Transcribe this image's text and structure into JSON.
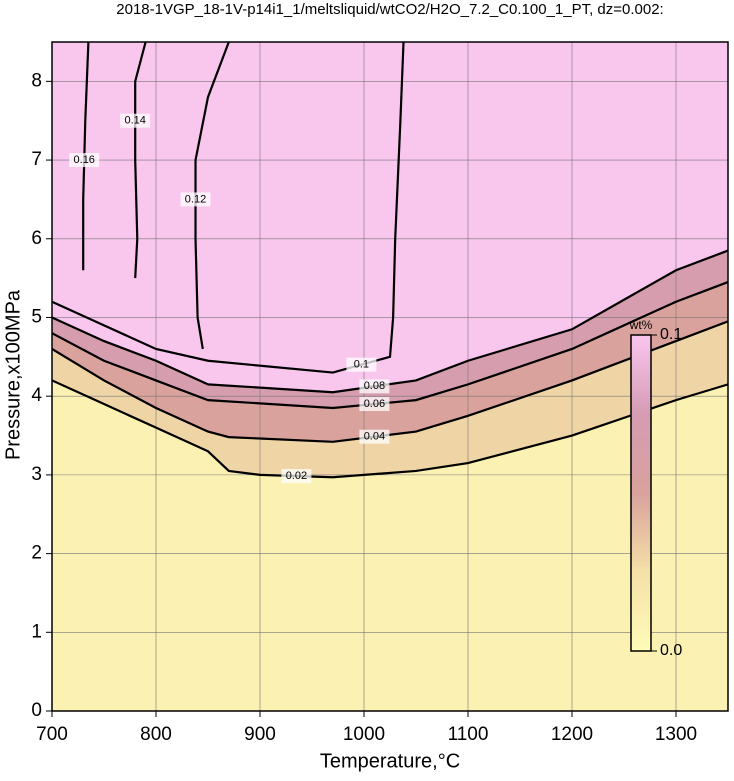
{
  "chart_data": {
    "type": "contour",
    "title": "2018-1VGP_18-1V-p14i1_1/meltsliquid/wtCO2/H2O_7.2_C0.100_1_PT, dz=0.002:",
    "x_label": "Temperature,°C",
    "y_label": "Pressure,x100MPa",
    "xlim": [
      700,
      1350
    ],
    "ylim": [
      0,
      8.5
    ],
    "xticks": [
      700,
      800,
      900,
      1000,
      1100,
      1200,
      1300
    ],
    "yticks": [
      0,
      1,
      2,
      3,
      4,
      5,
      6,
      7,
      8
    ],
    "grid": true,
    "contours": [
      {
        "level": 0.02,
        "x": [
          700,
          750,
          800,
          850,
          870,
          900,
          970,
          1050,
          1100,
          1200,
          1300,
          1350
        ],
        "y": [
          4.2,
          3.9,
          3.6,
          3.3,
          3.05,
          3.0,
          2.97,
          3.05,
          3.15,
          3.5,
          3.95,
          4.15
        ]
      },
      {
        "level": 0.04,
        "x": [
          700,
          750,
          800,
          850,
          870,
          970,
          1050,
          1100,
          1200,
          1300,
          1350
        ],
        "y": [
          4.6,
          4.2,
          3.85,
          3.55,
          3.48,
          3.42,
          3.55,
          3.75,
          4.2,
          4.7,
          4.95
        ]
      },
      {
        "level": 0.06,
        "x": [
          700,
          750,
          800,
          850,
          970,
          1050,
          1100,
          1200,
          1300,
          1350
        ],
        "y": [
          4.8,
          4.45,
          4.2,
          3.95,
          3.85,
          3.95,
          4.15,
          4.6,
          5.2,
          5.45
        ]
      },
      {
        "level": 0.08,
        "x": [
          700,
          750,
          800,
          850,
          970,
          1050,
          1100,
          1200,
          1300,
          1350
        ],
        "y": [
          5.0,
          4.7,
          4.45,
          4.15,
          4.05,
          4.2,
          4.45,
          4.85,
          5.6,
          5.85
        ]
      },
      {
        "level": 0.1,
        "x": [
          1038,
          1035,
          1030,
          1028,
          1025,
          970,
          850,
          800,
          750,
          700
        ],
        "y": [
          8.5,
          7.5,
          6.0,
          5.0,
          4.5,
          4.3,
          4.45,
          4.6,
          4.9,
          5.2
        ]
      },
      {
        "level": 0.12,
        "x": [
          845,
          840,
          838,
          838,
          850,
          870
        ],
        "y": [
          4.6,
          5.0,
          6.0,
          7.0,
          7.8,
          8.5
        ]
      },
      {
        "level": 0.14,
        "x": [
          780,
          782,
          780,
          780,
          790
        ],
        "y": [
          5.5,
          6.0,
          7.0,
          8.0,
          8.5
        ]
      },
      {
        "level": 0.16,
        "x": [
          730,
          730,
          732,
          735
        ],
        "y": [
          5.6,
          6.5,
          7.5,
          8.5
        ]
      }
    ],
    "colorbar": {
      "label": "wt%",
      "range": [
        0,
        0.1
      ],
      "ticks": [
        {
          "value": 0,
          "label": "0.0"
        },
        0.1
      ],
      "colors": [
        "#fffcb8",
        "#f5e0a8",
        "#d9a29c",
        "#d59cb4",
        "#f9c6ee"
      ]
    }
  }
}
